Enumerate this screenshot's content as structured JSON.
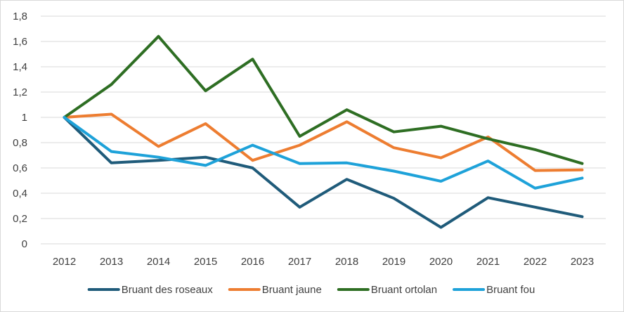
{
  "chart_data": {
    "type": "line",
    "title": "",
    "xlabel": "",
    "ylabel": "",
    "ylim": [
      0,
      1.8
    ],
    "y_ticks": [
      "0",
      "0,2",
      "0,4",
      "0,6",
      "0,8",
      "1",
      "1,2",
      "1,4",
      "1,6",
      "1,8"
    ],
    "grid": "horizontal",
    "legend_position": "bottom",
    "categories": [
      "2012",
      "2013",
      "2014",
      "2015",
      "2016",
      "2017",
      "2018",
      "2019",
      "2020",
      "2021",
      "2022",
      "2023"
    ],
    "series": [
      {
        "name": "Bruant des roseaux",
        "color": "#1f5b7a",
        "values": [
          1.0,
          0.64,
          0.66,
          0.685,
          0.6,
          0.29,
          0.51,
          0.36,
          0.13,
          0.365,
          0.29,
          0.215
        ]
      },
      {
        "name": "Bruant jaune",
        "color": "#ed7d31",
        "values": [
          1.0,
          1.025,
          0.77,
          0.95,
          0.66,
          0.78,
          0.965,
          0.76,
          0.68,
          0.845,
          0.58,
          0.585
        ]
      },
      {
        "name": "Bruant ortolan",
        "color": "#2e6e23",
        "values": [
          1.0,
          1.26,
          1.64,
          1.21,
          1.46,
          0.85,
          1.06,
          0.885,
          0.93,
          0.83,
          0.745,
          0.635
        ]
      },
      {
        "name": "Bruant fou",
        "color": "#1ea2d9",
        "values": [
          1.0,
          0.73,
          0.685,
          0.62,
          0.78,
          0.635,
          0.64,
          0.575,
          0.495,
          0.655,
          0.44,
          0.52
        ]
      }
    ]
  }
}
